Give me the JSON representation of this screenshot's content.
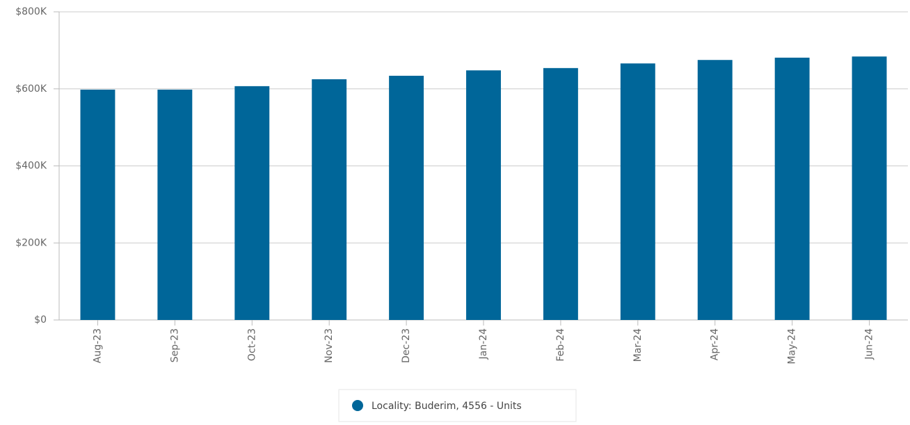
{
  "chart_data": {
    "type": "bar",
    "categories": [
      "Aug-23",
      "Sep-23",
      "Oct-23",
      "Nov-23",
      "Dec-23",
      "Jan-24",
      "Feb-24",
      "Mar-24",
      "Apr-24",
      "May-24",
      "Jun-24"
    ],
    "series": [
      {
        "name": "Locality: Buderim, 4556 - Units",
        "color": "#006699",
        "values": [
          598000,
          598000,
          607000,
          625000,
          634000,
          648000,
          654000,
          666000,
          675000,
          681000,
          684000
        ]
      }
    ],
    "ylim": [
      0,
      800000
    ],
    "yticks": [
      {
        "value": 0,
        "label": "$0"
      },
      {
        "value": 200000,
        "label": "$200K"
      },
      {
        "value": 400000,
        "label": "$400K"
      },
      {
        "value": 600000,
        "label": "$600K"
      },
      {
        "value": 800000,
        "label": "$800K"
      }
    ],
    "grid": true
  }
}
